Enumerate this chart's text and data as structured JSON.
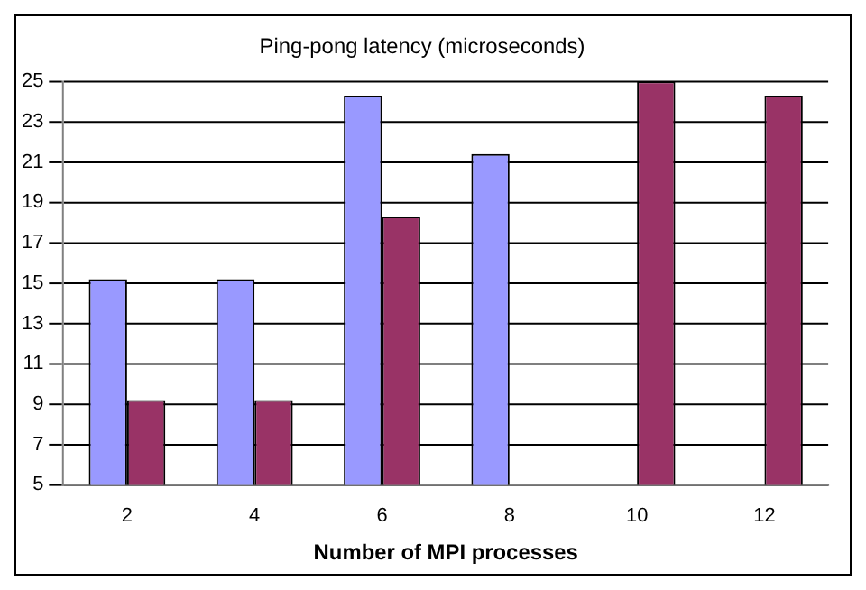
{
  "chart_data": {
    "type": "bar",
    "title": "Ping-pong latency (microseconds)",
    "xlabel": "Number of MPI processes",
    "categories": [
      "2",
      "4",
      "6",
      "8",
      "10",
      "12"
    ],
    "series": [
      {
        "color": "#9999ff",
        "values": [
          15.2,
          15.2,
          24.3,
          21.4,
          null,
          null
        ]
      },
      {
        "color": "#993366",
        "values": [
          9.2,
          9.2,
          18.3,
          null,
          25,
          24.3
        ]
      }
    ],
    "ylim": [
      5,
      25
    ],
    "yticks": [
      5,
      7,
      9,
      11,
      13,
      15,
      17,
      19,
      21,
      23,
      25
    ],
    "grid": "y",
    "legend": false
  }
}
